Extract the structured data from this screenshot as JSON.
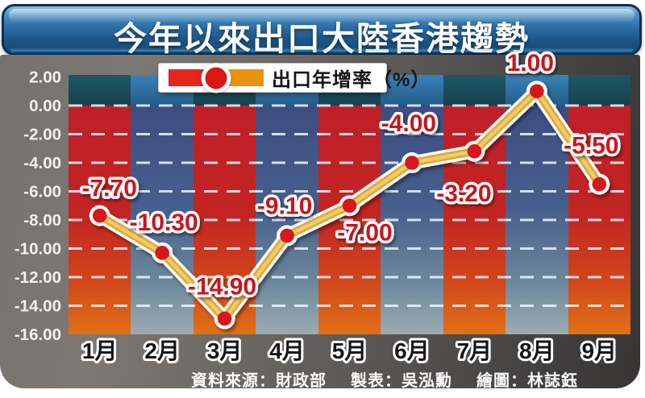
{
  "title": "今年以來出口大陸香港趨勢",
  "legend": {
    "label": "出口年增率（%）"
  },
  "footer": {
    "source": "資料來源：財政部",
    "table_by": "製表：吳泓勳",
    "drawn_by": "繪圖：林誌鈺"
  },
  "colors": {
    "label_red": "#c8151c",
    "marker_red": "#d7171e",
    "line_gold": "#e0a83c",
    "line_gold_light": "#f2cf6e",
    "warm_column_top_teal": "#1e5765",
    "warm_column_red": "#c22026",
    "warm_column_orange": "#e26f16",
    "cool_column_top_blue": "#3b82b8",
    "cool_column_indigo": "#3d4d80",
    "cool_column_gray": "#9dabb2",
    "titlebar_blue": "#2c6da4",
    "card_gray": "#5a5652"
  },
  "chart_data": {
    "type": "line",
    "title": "今年以來出口大陸香港趨勢",
    "series_name": "出口年增率（%）",
    "categories": [
      "1月",
      "2月",
      "3月",
      "4月",
      "5月",
      "6月",
      "7月",
      "8月",
      "9月"
    ],
    "values": [
      -7.7,
      -10.3,
      -14.9,
      -9.1,
      -7.0,
      -4.0,
      -3.2,
      1.0,
      -5.5
    ],
    "point_labels": [
      "-7.70",
      "-10.30",
      "-14.90",
      "-9.10",
      "-7.00",
      "-4.00",
      "-3.20",
      "1.00",
      "-5.50"
    ],
    "xlabel": "",
    "ylabel": "出口年增率（%）",
    "ylim": [
      -16,
      2
    ],
    "y_tick_step": 2,
    "y_tick_labels": [
      "2.00",
      "0.00",
      "-2.00",
      "-4.00",
      "-6.00",
      "-8.00",
      "-10.00",
      "-12.00",
      "-14.00",
      "-16.00"
    ],
    "grid": "horizontal-dashed",
    "legend_position": "top-center"
  }
}
